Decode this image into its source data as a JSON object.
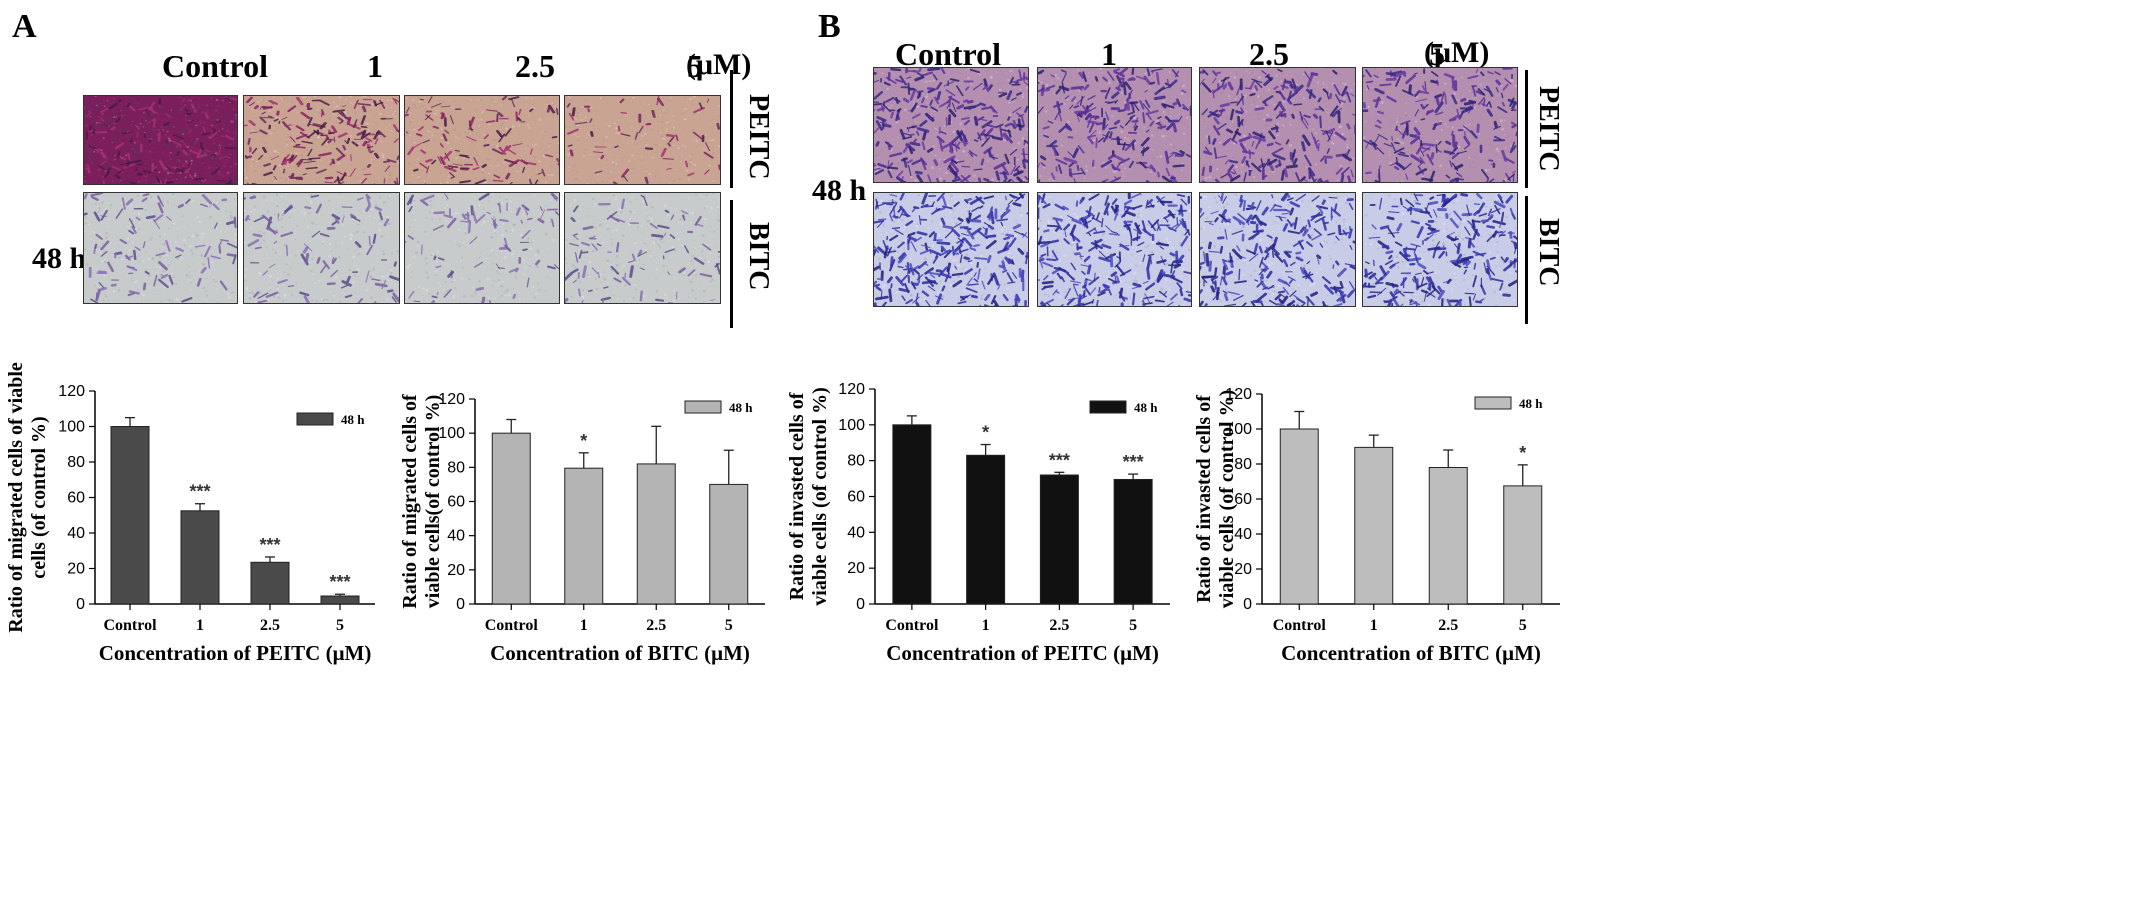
{
  "panels": [
    {
      "letter": "A",
      "time": "48 h",
      "unit": "(μM)",
      "columns": [
        "Control",
        "1",
        "2.5",
        "5"
      ],
      "rows": [
        {
          "label": "PEITC",
          "style": "pink-stain",
          "density": [
            0.95,
            0.55,
            0.3,
            0.1
          ]
        },
        {
          "label": "BITC",
          "style": "grey-sparse",
          "density": [
            0.25,
            0.22,
            0.2,
            0.2
          ]
        }
      ]
    },
    {
      "letter": "B",
      "time": "48 h",
      "unit": "(μM)",
      "columns": [
        "Control",
        "1",
        "2.5",
        "5"
      ],
      "rows": [
        {
          "label": "PEITC",
          "style": "purple-stain",
          "density": [
            0.9,
            0.75,
            0.7,
            0.65
          ]
        },
        {
          "label": "BITC",
          "style": "blue-dense",
          "density": [
            0.9,
            0.88,
            0.8,
            0.78
          ]
        }
      ]
    }
  ],
  "chart_data": [
    {
      "type": "bar",
      "ylabel": "Ratio of migrated cells of viable cells  (of control %)",
      "xlabel": "Concentration of PEITC (μM)",
      "categories": [
        "Control",
        "1",
        "2.5",
        "5"
      ],
      "values": [
        100,
        52.5,
        23.5,
        4.5
      ],
      "errors": [
        5,
        4,
        3,
        1
      ],
      "significance": [
        "",
        "***",
        "***",
        "***"
      ],
      "ylim": [
        0,
        120
      ],
      "yticks": [
        "0",
        "20",
        "40",
        "60",
        "80",
        "100",
        "120"
      ],
      "series_name": "48 h",
      "color": "#4a4a4a",
      "legend": "top-right"
    },
    {
      "type": "bar",
      "ylabel": "Ratio of migrated cells of viable cells(of control %)",
      "xlabel": "Concentration of BITC (μM)",
      "categories": [
        "Control",
        "1",
        "2.5",
        "5"
      ],
      "values": [
        100,
        79.5,
        82,
        70
      ],
      "errors": [
        8,
        9,
        22,
        20
      ],
      "significance": [
        "",
        "*",
        "",
        ""
      ],
      "ylim": [
        0,
        120
      ],
      "yticks": [
        "0",
        "20",
        "40",
        "60",
        "80",
        "100",
        "120"
      ],
      "series_name": "48 h",
      "color": "#b4b4b4",
      "legend": "top-right"
    },
    {
      "type": "bar",
      "ylabel": "Ratio of invasted cells of viable cells (of control %)",
      "xlabel": "Concentration of PEITC (μM)",
      "categories": [
        "Control",
        "1",
        "2.5",
        "5"
      ],
      "values": [
        100,
        83,
        72,
        69.5
      ],
      "errors": [
        5,
        6,
        1.5,
        3
      ],
      "significance": [
        "",
        "*",
        "***",
        "***"
      ],
      "ylim": [
        0,
        120
      ],
      "yticks": [
        "0",
        "20",
        "40",
        "60",
        "80",
        "100",
        "120"
      ],
      "series_name": "48 h",
      "color": "#111111",
      "legend": "top-right"
    },
    {
      "type": "bar",
      "ylabel": "Ratio of invasted cells of viable cells (of control %)",
      "xlabel": "Concentration of BITC (μM)",
      "categories": [
        "Control",
        "1",
        "2.5",
        "5"
      ],
      "values": [
        100,
        89.5,
        78,
        67.5
      ],
      "errors": [
        10,
        7,
        10,
        12
      ],
      "significance": [
        "",
        "",
        "",
        "*"
      ],
      "ylim": [
        0,
        120
      ],
      "yticks": [
        "0",
        "20",
        "40",
        "60",
        "80",
        "100",
        "120"
      ],
      "series_name": "48 h",
      "color": "#bdbdbd",
      "legend": "top-right"
    }
  ]
}
